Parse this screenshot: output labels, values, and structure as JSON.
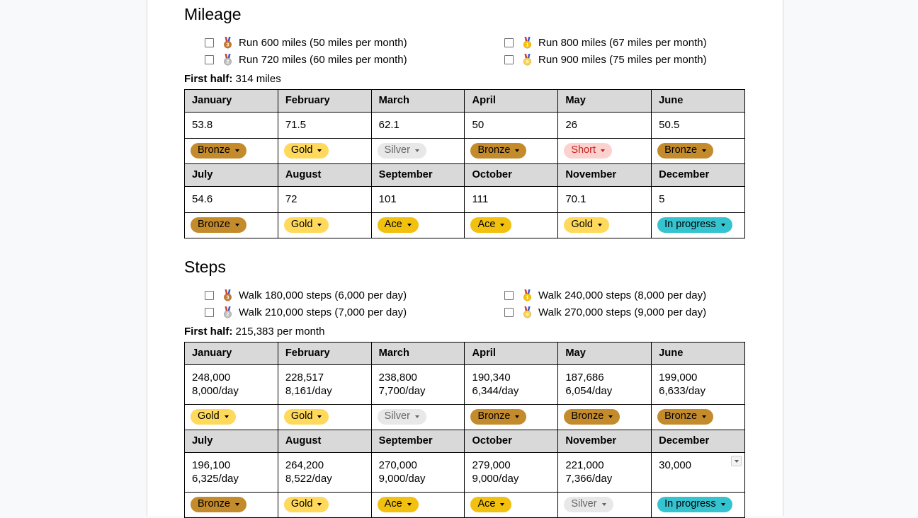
{
  "colors": {
    "canvas_bg": "#f8f9fa",
    "page_bg": "#ffffff",
    "page_border": "#d8d8d8",
    "table_border": "#000000",
    "header_cell_bg": "#d9d9d9",
    "badge_colors": {
      "Bronze": {
        "bg": "#c48b2c",
        "text": "#000000"
      },
      "Gold": {
        "bg": "#ffd95c",
        "text": "#000000"
      },
      "Silver": {
        "bg": "#e8e8e8",
        "text": "#666666"
      },
      "Short": {
        "bg": "#fbd2ce",
        "text": "#c5221f"
      },
      "Ace": {
        "bg": "#f2c00e",
        "text": "#000000"
      },
      "In progress": {
        "bg": "#35c3cf",
        "text": "#000000"
      }
    },
    "medal_colors": {
      "bronze-medal": "#c9782f",
      "silver-medal": "#bdbdbd",
      "gold-medal": "#fcc200",
      "sports-medal": "#fcd34d"
    }
  },
  "sections": [
    {
      "title": "Mileage",
      "goal_columns": [
        [
          {
            "icon": "bronze-medal-icon",
            "label": "Run 600 miles (50 miles per month)"
          },
          {
            "icon": "silver-medal-icon",
            "label": "Run 720 miles (60 miles per month)"
          }
        ],
        [
          {
            "icon": "gold-medal-icon",
            "label": "Run 800 miles (67 miles per month)"
          },
          {
            "icon": "sports-medal-icon",
            "label": "Run 900 miles (75 miles per month)"
          }
        ]
      ],
      "first_half_label": "First half:",
      "first_half_value": "314 miles",
      "table": {
        "blocks": [
          {
            "months": [
              "January",
              "February",
              "March",
              "April",
              "May",
              "June"
            ],
            "values": [
              [
                "53.8"
              ],
              [
                "71.5"
              ],
              [
                "62.1"
              ],
              [
                "50"
              ],
              [
                "26"
              ],
              [
                "50.5"
              ]
            ],
            "badges": [
              "Bronze",
              "Gold",
              "Silver",
              "Bronze",
              "Short",
              "Bronze"
            ]
          },
          {
            "months": [
              "July",
              "August",
              "September",
              "October",
              "November",
              "December"
            ],
            "values": [
              [
                "54.6"
              ],
              [
                "72"
              ],
              [
                "101"
              ],
              [
                "111"
              ],
              [
                "70.1"
              ],
              [
                "5"
              ]
            ],
            "badges": [
              "Bronze",
              "Gold",
              "Ace",
              "Ace",
              "Gold",
              "In progress"
            ]
          }
        ]
      }
    },
    {
      "title": "Steps",
      "goal_columns": [
        [
          {
            "icon": "bronze-medal-icon",
            "label": "Walk 180,000 steps (6,000 per day)"
          },
          {
            "icon": "silver-medal-icon",
            "label": "Walk 210,000 steps (7,000 per day)"
          }
        ],
        [
          {
            "icon": "gold-medal-icon",
            "label": "Walk 240,000 steps (8,000 per day)"
          },
          {
            "icon": "sports-medal-icon",
            "label": "Walk 270,000 steps (9,000 per day)"
          }
        ]
      ],
      "first_half_label": "First half:",
      "first_half_value": "215,383 per month",
      "table": {
        "blocks": [
          {
            "months": [
              "January",
              "February",
              "March",
              "April",
              "May",
              "June"
            ],
            "values": [
              [
                "248,000",
                "8,000/day"
              ],
              [
                "228,517",
                "8,161/day"
              ],
              [
                "238,800",
                "7,700/day"
              ],
              [
                "190,340",
                "6,344/day"
              ],
              [
                "187,686",
                "6,054/day"
              ],
              [
                "199,000",
                "6,633/day"
              ]
            ],
            "badges": [
              "Gold",
              "Gold",
              "Silver",
              "Bronze",
              "Bronze",
              "Bronze"
            ]
          },
          {
            "months": [
              "July",
              "August",
              "September",
              "October",
              "November",
              "December"
            ],
            "values": [
              [
                "196,100",
                "6,325/day"
              ],
              [
                "264,200",
                "8,522/day"
              ],
              [
                "270,000",
                "9,000/day"
              ],
              [
                "279,000",
                "9,000/day"
              ],
              [
                "221,000",
                "7,366/day"
              ],
              [
                "30,000"
              ]
            ],
            "badges": [
              "Bronze",
              "Gold",
              "Ace",
              "Ace",
              "Silver",
              "In progress"
            ],
            "dropdown_col": 5
          }
        ]
      }
    }
  ]
}
